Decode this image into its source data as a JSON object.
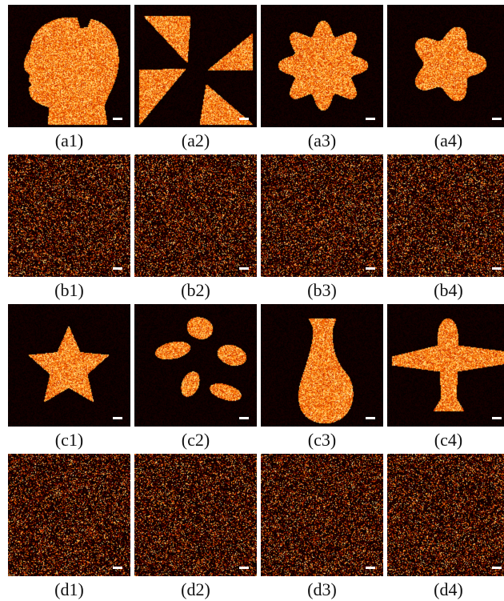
{
  "figure": {
    "rows": [
      {
        "kind": "shape",
        "panels": [
          {
            "label": "(a1)",
            "shape": "head-profile"
          },
          {
            "label": "(a2)",
            "shape": "pinwheel-triangles"
          },
          {
            "label": "(a3)",
            "shape": "star-gear-8"
          },
          {
            "label": "(a4)",
            "shape": "star-gear-5"
          }
        ]
      },
      {
        "kind": "noise",
        "panels": [
          {
            "label": "(b1)",
            "shape": "speckle-noise"
          },
          {
            "label": "(b2)",
            "shape": "speckle-noise"
          },
          {
            "label": "(b3)",
            "shape": "speckle-noise"
          },
          {
            "label": "(b4)",
            "shape": "speckle-noise"
          }
        ]
      },
      {
        "kind": "shape",
        "panels": [
          {
            "label": "(c1)",
            "shape": "five-point-star"
          },
          {
            "label": "(c2)",
            "shape": "five-petal-flower"
          },
          {
            "label": "(c3)",
            "shape": "vase"
          },
          {
            "label": "(c4)",
            "shape": "airplane"
          }
        ]
      },
      {
        "kind": "noise",
        "panels": [
          {
            "label": "(d1)",
            "shape": "speckle-noise"
          },
          {
            "label": "(d2)",
            "shape": "speckle-noise"
          },
          {
            "label": "(d3)",
            "shape": "speckle-noise"
          },
          {
            "label": "(d4)",
            "shape": "speckle-noise"
          }
        ]
      }
    ],
    "colormap": [
      "#000000",
      "#3a0000",
      "#8b0a00",
      "#d43300",
      "#ff7a00",
      "#ffd060",
      "#ffffe0"
    ],
    "background_color": "#050000",
    "scalebar_color": "#ffffff"
  }
}
